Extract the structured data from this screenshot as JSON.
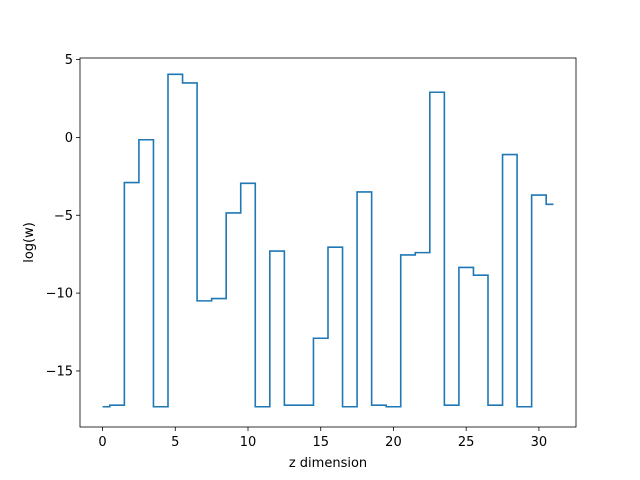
{
  "chart_data": {
    "type": "line",
    "drawstyle": "steps-mid",
    "xlabel": "z dimension",
    "ylabel": "log(w)",
    "xlim": [
      -1.55,
      32.55
    ],
    "ylim": [
      -18.6,
      5.1
    ],
    "xticks": [
      0,
      5,
      10,
      15,
      20,
      25,
      30
    ],
    "yticks": [
      -15,
      -10,
      -5,
      0,
      5
    ],
    "grid": false,
    "line_color": "#1f77b4",
    "x": [
      0,
      1,
      2,
      3,
      4,
      5,
      6,
      7,
      8,
      9,
      10,
      11,
      12,
      13,
      14,
      15,
      16,
      17,
      18,
      19,
      20,
      21,
      22,
      23,
      24,
      25,
      26,
      27,
      28,
      29,
      30,
      31
    ],
    "values": [
      -17.3,
      -17.2,
      -2.9,
      -0.15,
      -17.3,
      4.05,
      3.5,
      -10.5,
      -10.35,
      -4.85,
      -2.95,
      -17.3,
      -7.3,
      -17.2,
      -17.2,
      -12.9,
      -7.05,
      -17.3,
      -3.5,
      -17.2,
      -17.3,
      -7.55,
      -7.4,
      2.9,
      -17.2,
      -8.35,
      -8.85,
      -17.2,
      -1.1,
      -17.3,
      -3.7,
      -4.3
    ]
  }
}
